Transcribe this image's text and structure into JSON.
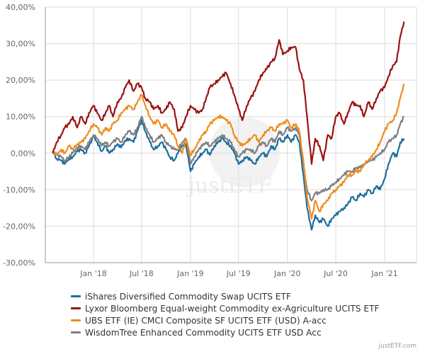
{
  "chart_data": {
    "type": "line",
    "title": "",
    "xlabel": "",
    "ylabel": "",
    "ylim": [
      -30,
      40
    ],
    "yticks": [
      -30,
      -20,
      -10,
      0,
      10,
      20,
      30,
      40
    ],
    "ytick_labels": [
      "-30,00%",
      "-20,00%",
      "-10,00%",
      "0,00%",
      "10,00%",
      "20,00%",
      "30,00%",
      "40,00%"
    ],
    "xlim": [
      "2017-08-01",
      "2021-03-15"
    ],
    "xticks": [
      "2018-01-01",
      "2018-07-01",
      "2019-01-01",
      "2019-07-01",
      "2020-01-01",
      "2020-07-01",
      "2021-01-01"
    ],
    "xtick_labels": [
      "Jan '18",
      "Jul '18",
      "Jan '19",
      "Jul '19",
      "Jan '20",
      "Jul '20",
      "Jan '21"
    ],
    "grid": true,
    "legend_position": "bottom",
    "watermark": "justETF",
    "x": [
      "2017-08-01",
      "2017-08-15",
      "2017-09-01",
      "2017-09-15",
      "2017-10-01",
      "2017-10-15",
      "2017-11-01",
      "2017-11-15",
      "2017-12-01",
      "2017-12-15",
      "2018-01-01",
      "2018-01-15",
      "2018-02-01",
      "2018-02-15",
      "2018-03-01",
      "2018-03-15",
      "2018-04-01",
      "2018-04-15",
      "2018-05-01",
      "2018-05-15",
      "2018-06-01",
      "2018-06-15",
      "2018-07-01",
      "2018-07-15",
      "2018-08-01",
      "2018-08-15",
      "2018-09-01",
      "2018-09-15",
      "2018-10-01",
      "2018-10-15",
      "2018-11-01",
      "2018-11-15",
      "2018-12-01",
      "2018-12-15",
      "2019-01-01",
      "2019-01-15",
      "2019-02-01",
      "2019-02-15",
      "2019-03-01",
      "2019-03-15",
      "2019-04-01",
      "2019-04-15",
      "2019-05-01",
      "2019-05-15",
      "2019-06-01",
      "2019-06-15",
      "2019-07-01",
      "2019-07-15",
      "2019-08-01",
      "2019-08-15",
      "2019-09-01",
      "2019-09-15",
      "2019-10-01",
      "2019-10-15",
      "2019-11-01",
      "2019-11-15",
      "2019-12-01",
      "2019-12-15",
      "2020-01-01",
      "2020-01-15",
      "2020-02-01",
      "2020-02-15",
      "2020-03-01",
      "2020-03-15",
      "2020-04-01",
      "2020-04-15",
      "2020-05-01",
      "2020-05-15",
      "2020-06-01",
      "2020-06-15",
      "2020-07-01",
      "2020-07-15",
      "2020-08-01",
      "2020-08-15",
      "2020-09-01",
      "2020-09-15",
      "2020-10-01",
      "2020-10-15",
      "2020-11-01",
      "2020-11-15",
      "2020-12-01",
      "2020-12-15",
      "2021-01-01",
      "2021-01-15",
      "2021-02-01",
      "2021-02-15",
      "2021-03-01",
      "2021-03-15"
    ],
    "series": [
      {
        "name": "iShares Diversified Commodity Swap UCITS ETF",
        "color": "#1f6ea0",
        "values": [
          0.5,
          -1.5,
          -2,
          -3,
          -1.5,
          -1,
          0.5,
          1,
          0,
          2,
          4.5,
          3,
          0.5,
          2,
          0,
          1,
          2.5,
          1.5,
          3.5,
          4,
          3,
          6,
          9,
          6,
          3,
          1,
          2,
          3,
          1,
          -1,
          -2,
          0,
          2,
          2.5,
          -5,
          -3,
          -1,
          0,
          1,
          -0.5,
          2,
          3,
          4,
          3,
          2,
          0,
          -3,
          -2,
          -1,
          -2,
          -3,
          -1,
          0,
          -1,
          2,
          1,
          4,
          3,
          5,
          3,
          5,
          3,
          -6,
          -15,
          -21,
          -17,
          -19,
          -18,
          -20,
          -18,
          -17,
          -16,
          -15,
          -14,
          -12,
          -13,
          -11,
          -12,
          -10,
          -11,
          -9,
          -10,
          -7,
          -3,
          0,
          -1,
          3,
          4
        ]
      },
      {
        "name": "Lyxor Bloomberg Equal-weight Commodity ex-Agriculture UCITS ETF",
        "color": "#9b1111",
        "values": [
          0,
          3,
          5,
          7,
          8,
          10,
          7,
          10,
          8,
          11,
          13,
          11,
          9,
          11,
          13,
          10,
          14,
          15,
          18,
          20,
          17,
          19,
          18,
          15,
          14,
          12,
          13,
          11,
          12,
          14,
          12,
          6,
          7,
          10,
          13,
          12,
          11,
          12,
          15,
          18,
          19,
          20,
          21,
          22,
          19,
          16,
          12,
          9,
          13,
          15,
          17,
          20,
          22,
          23,
          25,
          26,
          31,
          27,
          28,
          29,
          29,
          23,
          20,
          10,
          -3,
          4,
          2,
          -2,
          5,
          4,
          10,
          11,
          8,
          11,
          14,
          13,
          13,
          10,
          14,
          12,
          15,
          17,
          18,
          21,
          24,
          25,
          32,
          36
        ]
      },
      {
        "name": "UBS ETF (IE) CMCI Composite SF UCITS ETF (USD) A-acc",
        "color": "#f08c1e",
        "values": [
          0.5,
          -0.5,
          1,
          0,
          2,
          1,
          2.5,
          3,
          4,
          6,
          8,
          7,
          5,
          7,
          6,
          8,
          9,
          11,
          12,
          13,
          12,
          14,
          16,
          13,
          10,
          8,
          9,
          7,
          8,
          6,
          5,
          2,
          0,
          4,
          -0.5,
          1,
          3,
          5,
          6,
          8,
          9,
          10,
          10,
          9,
          8,
          5,
          3,
          2,
          3,
          4,
          5,
          3,
          5,
          6,
          7,
          6,
          8,
          8,
          9,
          7,
          8,
          6,
          -2,
          -12,
          -18,
          -13,
          -16,
          -14,
          -13,
          -11,
          -10,
          -9,
          -8,
          -6,
          -6,
          -5,
          -5,
          -3,
          -2,
          -1,
          1,
          3,
          6,
          8,
          9,
          11,
          15,
          19
        ]
      },
      {
        "name": "WisdomTree Enhanced Commodity UCITS ETF USD Acc",
        "color": "#7f7f7f",
        "values": [
          0.5,
          -0.5,
          -1,
          -2,
          -1,
          0,
          1.5,
          2,
          1,
          3,
          5,
          4,
          2,
          3,
          2,
          3,
          4,
          3,
          5,
          6,
          5,
          7,
          10,
          7,
          5,
          3,
          4,
          5,
          3,
          2,
          1,
          1,
          3,
          4,
          -3,
          -1,
          1,
          2,
          3,
          2,
          3,
          4,
          5,
          4,
          3,
          1,
          -1,
          0,
          1,
          1,
          0,
          2,
          3,
          2,
          4,
          3,
          6,
          5,
          7,
          6,
          7,
          5,
          -3,
          -10,
          -13,
          -11,
          -11,
          -10,
          -10,
          -9,
          -8,
          -7,
          -6,
          -5,
          -5,
          -4,
          -4,
          -3,
          -2,
          -2,
          -1,
          0,
          1,
          3,
          4,
          5,
          8,
          10
        ]
      }
    ]
  },
  "footer": {
    "credit": "justETF.com"
  }
}
